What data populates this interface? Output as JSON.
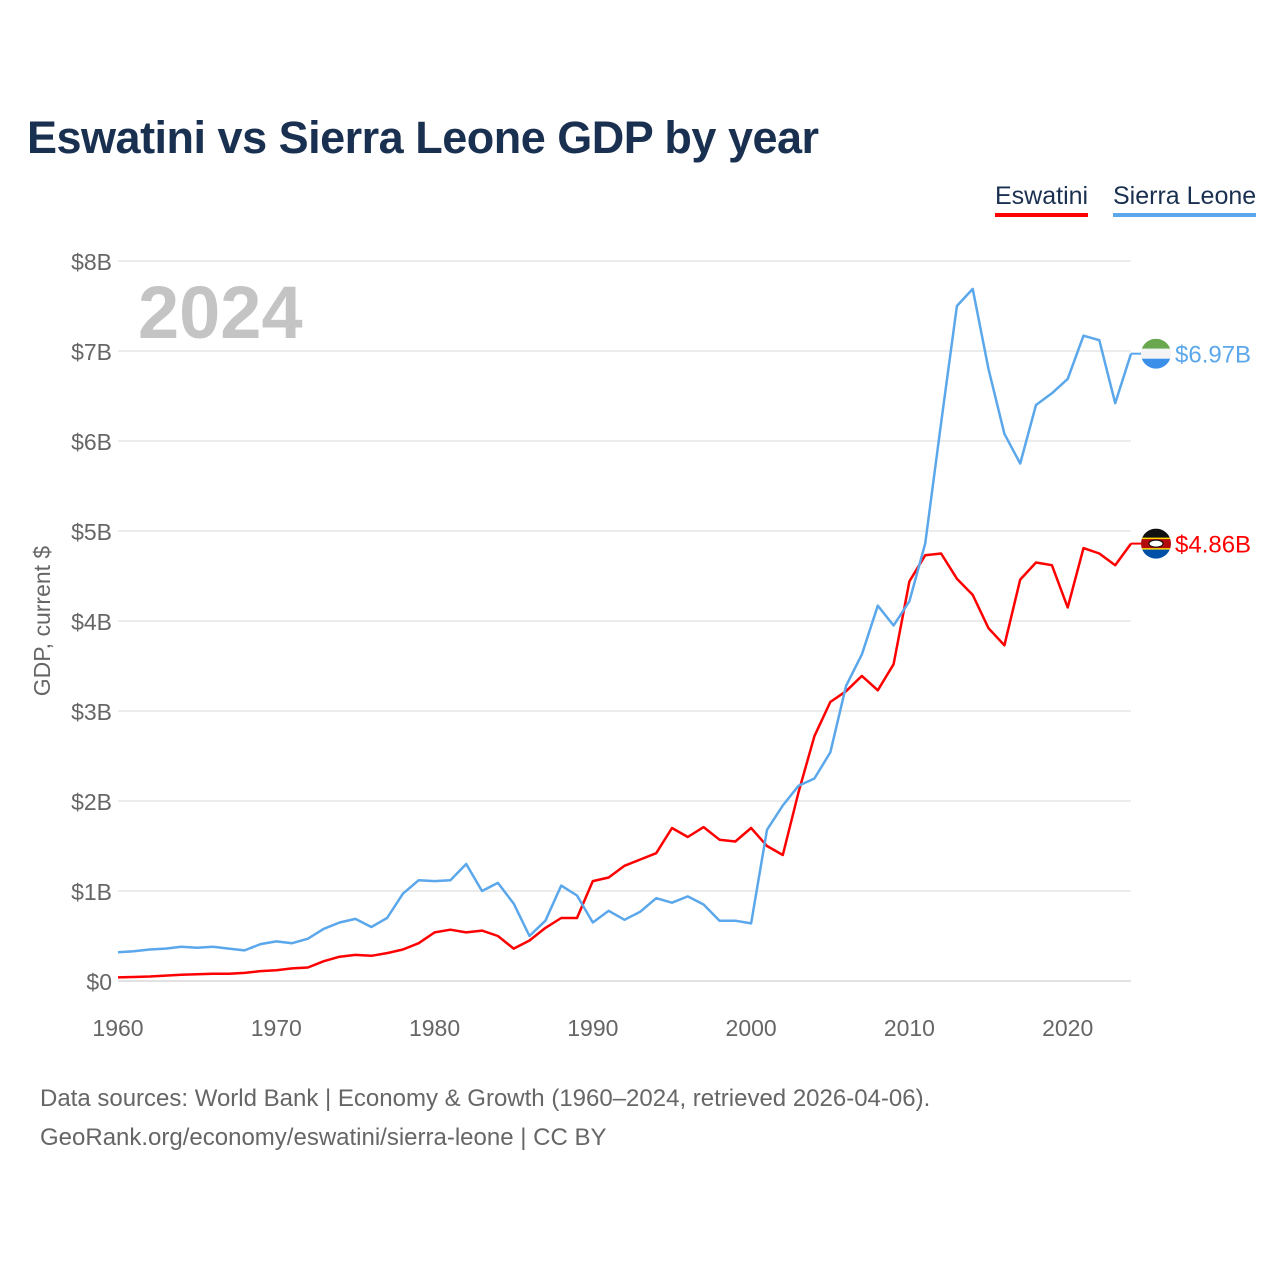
{
  "chart_data": {
    "type": "line",
    "title": "Eswatini vs Sierra Leone GDP by year",
    "ylabel": "GDP, current $",
    "xlabel": "",
    "year_watermark": "2024",
    "xlim": [
      1960,
      2024
    ],
    "ylim": [
      0,
      8
    ],
    "x_ticks": [
      "1960",
      "1970",
      "1980",
      "1990",
      "2000",
      "2010",
      "2020"
    ],
    "y_ticks": [
      "$0",
      "$1B",
      "$2B",
      "$3B",
      "$4B",
      "$5B",
      "$6B",
      "$7B",
      "$8B"
    ],
    "grid": true,
    "legend_position": "top-right",
    "x": [
      1960,
      1961,
      1962,
      1963,
      1964,
      1965,
      1966,
      1967,
      1968,
      1969,
      1970,
      1971,
      1972,
      1973,
      1974,
      1975,
      1976,
      1977,
      1978,
      1979,
      1980,
      1981,
      1982,
      1983,
      1984,
      1985,
      1986,
      1987,
      1988,
      1989,
      1990,
      1991,
      1992,
      1993,
      1994,
      1995,
      1996,
      1997,
      1998,
      1999,
      2000,
      2001,
      2002,
      2003,
      2004,
      2005,
      2006,
      2007,
      2008,
      2009,
      2010,
      2011,
      2012,
      2013,
      2014,
      2015,
      2016,
      2017,
      2018,
      2019,
      2020,
      2021,
      2022,
      2023,
      2024
    ],
    "series": [
      {
        "name": "Eswatini",
        "color": "#ff0000",
        "end_label": "$4.86B",
        "flag": "eswatini-flag",
        "values": [
          0.04,
          0.045,
          0.05,
          0.06,
          0.07,
          0.075,
          0.08,
          0.08,
          0.09,
          0.11,
          0.12,
          0.14,
          0.15,
          0.22,
          0.27,
          0.29,
          0.28,
          0.31,
          0.35,
          0.42,
          0.54,
          0.57,
          0.54,
          0.56,
          0.5,
          0.36,
          0.45,
          0.59,
          0.7,
          0.7,
          1.11,
          1.15,
          1.28,
          1.35,
          1.42,
          1.7,
          1.6,
          1.71,
          1.57,
          1.55,
          1.7,
          1.5,
          1.4,
          2.1,
          2.72,
          3.1,
          3.22,
          3.39,
          3.23,
          3.52,
          4.44,
          4.73,
          4.75,
          4.47,
          4.29,
          3.92,
          3.73,
          4.46,
          4.65,
          4.62,
          4.15,
          4.81,
          4.75,
          4.62,
          4.86
        ]
      },
      {
        "name": "Sierra Leone",
        "color": "#5ba7eb",
        "end_label": "$6.97B",
        "flag": "sierra-leone-flag",
        "values": [
          0.32,
          0.33,
          0.35,
          0.36,
          0.38,
          0.37,
          0.38,
          0.36,
          0.34,
          0.41,
          0.44,
          0.42,
          0.47,
          0.58,
          0.65,
          0.69,
          0.6,
          0.7,
          0.97,
          1.12,
          1.11,
          1.12,
          1.3,
          1.0,
          1.09,
          0.86,
          0.5,
          0.67,
          1.06,
          0.95,
          0.65,
          0.78,
          0.68,
          0.77,
          0.92,
          0.87,
          0.94,
          0.85,
          0.67,
          0.67,
          0.64,
          1.68,
          1.95,
          2.17,
          2.25,
          2.54,
          3.28,
          3.63,
          4.17,
          3.95,
          4.22,
          4.86,
          6.2,
          7.5,
          7.69,
          6.8,
          6.08,
          5.75,
          6.4,
          6.53,
          6.69,
          7.17,
          7.12,
          6.42,
          6.97
        ]
      }
    ]
  },
  "footer": {
    "line1": "Data sources: World Bank | Economy & Growth (1960–2024, retrieved 2026-04-06).",
    "line2": "GeoRank.org/economy/eswatini/sierra-leone | CC BY"
  }
}
